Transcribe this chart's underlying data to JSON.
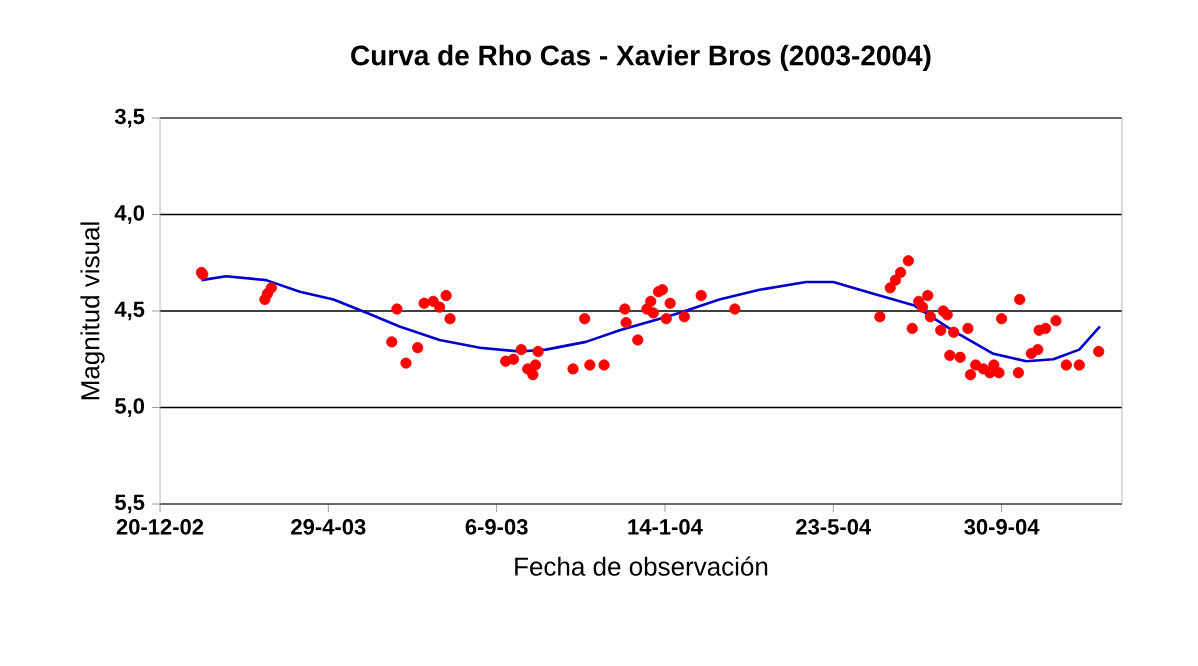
{
  "chart_data": {
    "type": "scatter",
    "title": "Curva de Rho Cas - Xavier Bros (2003-2004)",
    "xlabel": "Fecha de observación",
    "ylabel": "Magnitud visual",
    "xlim": [
      "2002-12-20",
      "2005-01-01"
    ],
    "xticks": [
      {
        "value": "2002-12-20",
        "label": "20-12-02"
      },
      {
        "value": "2003-04-29",
        "label": "29-4-03"
      },
      {
        "value": "2003-09-06",
        "label": "6-9-03"
      },
      {
        "value": "2004-01-14",
        "label": "14-1-04"
      },
      {
        "value": "2004-05-23",
        "label": "23-5-04"
      },
      {
        "value": "2004-09-30",
        "label": "30-9-04"
      }
    ],
    "ylim": [
      5.5,
      3.5
    ],
    "yticks": [
      {
        "value": 3.5,
        "label": "3,5"
      },
      {
        "value": 4.0,
        "label": "4,0"
      },
      {
        "value": 4.5,
        "label": "4,5"
      },
      {
        "value": 5.0,
        "label": "5,0"
      },
      {
        "value": 5.5,
        "label": "5,5"
      }
    ],
    "grid": "y",
    "series": [
      {
        "marker": "circle",
        "color": "#ff0000",
        "x": [
          "2003-01-21",
          "2003-01-22",
          "2003-03-11",
          "2003-03-13",
          "2003-03-16",
          "2003-06-17",
          "2003-06-21",
          "2003-06-28",
          "2003-07-07",
          "2003-07-12",
          "2003-07-19",
          "2003-07-24",
          "2003-07-29",
          "2003-08-01",
          "2003-09-13",
          "2003-09-19",
          "2003-09-25",
          "2003-09-30",
          "2003-10-04",
          "2003-10-06",
          "2003-10-08",
          "2003-11-04",
          "2003-11-13",
          "2003-11-17",
          "2003-11-28",
          "2003-12-14",
          "2003-12-15",
          "2003-12-24",
          "2003-12-31",
          "2004-01-03",
          "2004-01-05",
          "2004-01-09",
          "2004-01-12",
          "2004-01-15",
          "2004-01-18",
          "2004-01-29",
          "2004-02-11",
          "2004-03-08",
          "2004-06-28",
          "2004-07-06",
          "2004-07-10",
          "2004-07-14",
          "2004-07-20",
          "2004-07-23",
          "2004-07-28",
          "2004-07-31",
          "2004-08-04",
          "2004-08-06",
          "2004-08-14",
          "2004-08-16",
          "2004-08-19",
          "2004-08-21",
          "2004-08-24",
          "2004-08-29",
          "2004-09-04",
          "2004-09-06",
          "2004-09-10",
          "2004-09-16",
          "2004-09-21",
          "2004-09-24",
          "2004-09-28",
          "2004-09-30",
          "2004-10-13",
          "2004-10-14",
          "2004-10-23",
          "2004-10-28",
          "2004-10-29",
          "2004-11-03",
          "2004-11-11",
          "2004-11-19",
          "2004-11-29",
          "2004-12-14"
        ],
        "values": [
          4.3,
          4.31,
          4.44,
          4.41,
          4.38,
          4.66,
          4.49,
          4.77,
          4.69,
          4.46,
          4.45,
          4.48,
          4.42,
          4.54,
          4.76,
          4.75,
          4.7,
          4.8,
          4.83,
          4.78,
          4.71,
          4.8,
          4.54,
          4.78,
          4.78,
          4.49,
          4.56,
          4.65,
          4.49,
          4.45,
          4.51,
          4.4,
          4.39,
          4.54,
          4.46,
          4.53,
          4.42,
          4.49,
          4.53,
          4.38,
          4.34,
          4.3,
          4.24,
          4.59,
          4.45,
          4.48,
          4.42,
          4.53,
          4.6,
          4.5,
          4.52,
          4.73,
          4.61,
          4.74,
          4.59,
          4.83,
          4.78,
          4.8,
          4.82,
          4.78,
          4.82,
          4.54,
          4.82,
          4.44,
          4.72,
          4.7,
          4.6,
          4.59,
          4.55,
          4.78,
          4.78,
          4.71
        ]
      },
      {
        "type": "line",
        "marker": "none",
        "line_style": "solid",
        "color": "#0000cc",
        "x": [
          "2003-01-21",
          "2003-02-09",
          "2003-03-12",
          "2003-04-07",
          "2003-05-03",
          "2003-05-29",
          "2003-06-23",
          "2003-07-24",
          "2003-08-24",
          "2003-09-24",
          "2003-10-14",
          "2003-11-14",
          "2003-12-10",
          "2004-01-10",
          "2004-01-25",
          "2004-02-25",
          "2004-03-27",
          "2004-05-02",
          "2004-05-23",
          "2004-06-23",
          "2004-07-24",
          "2004-08-23",
          "2004-09-23",
          "2004-10-19",
          "2004-11-09",
          "2004-11-29",
          "2004-12-15"
        ],
        "values": [
          4.34,
          4.32,
          4.34,
          4.4,
          4.44,
          4.51,
          4.58,
          4.65,
          4.69,
          4.71,
          4.7,
          4.66,
          4.6,
          4.54,
          4.51,
          4.44,
          4.39,
          4.35,
          4.35,
          4.41,
          4.47,
          4.6,
          4.72,
          4.76,
          4.75,
          4.7,
          4.58
        ]
      }
    ]
  }
}
